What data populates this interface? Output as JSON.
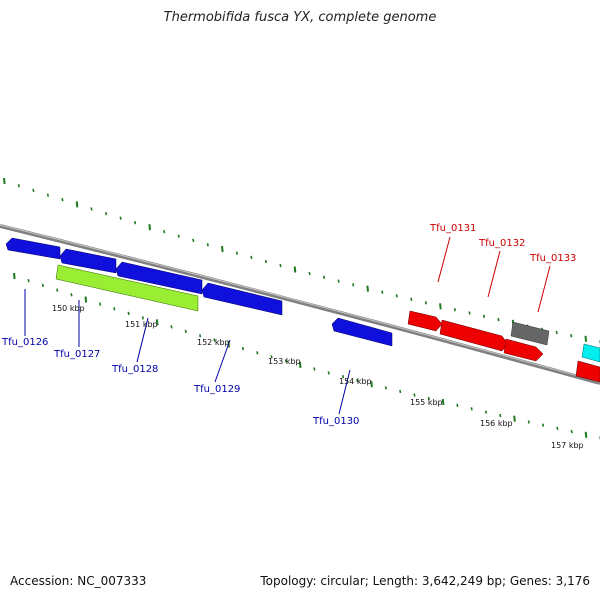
{
  "title": "Thermobifida fusca YX, complete genome",
  "footer": {
    "accession": "Accession: NC_007333",
    "summary": "Topology: circular; Length: 3,642,249 bp; Genes: 3,176"
  },
  "colors": {
    "backbone": "#808080",
    "ticks": "#1e7a1e",
    "forward_gene_label": "#cc0000",
    "reverse_gene_label": "#0000aa",
    "blue_gene": "#1010dd",
    "red_gene": "#ee0000",
    "green_gene": "#99ee33",
    "grey_gene": "#666666",
    "cyan_gene": "#00eeee"
  },
  "ticks": {
    "inner": [
      "150 kbp",
      "151 kbp",
      "152 kbp",
      "153 kbp",
      "154 kbp",
      "155 kbp",
      "156 kbp",
      "157 kbp"
    ]
  },
  "genes": {
    "labels": [
      "Tfu_0126",
      "Tfu_0127",
      "Tfu_0128",
      "Tfu_0129",
      "Tfu_0130",
      "Tfu_0131",
      "Tfu_0132",
      "Tfu_0133"
    ]
  }
}
